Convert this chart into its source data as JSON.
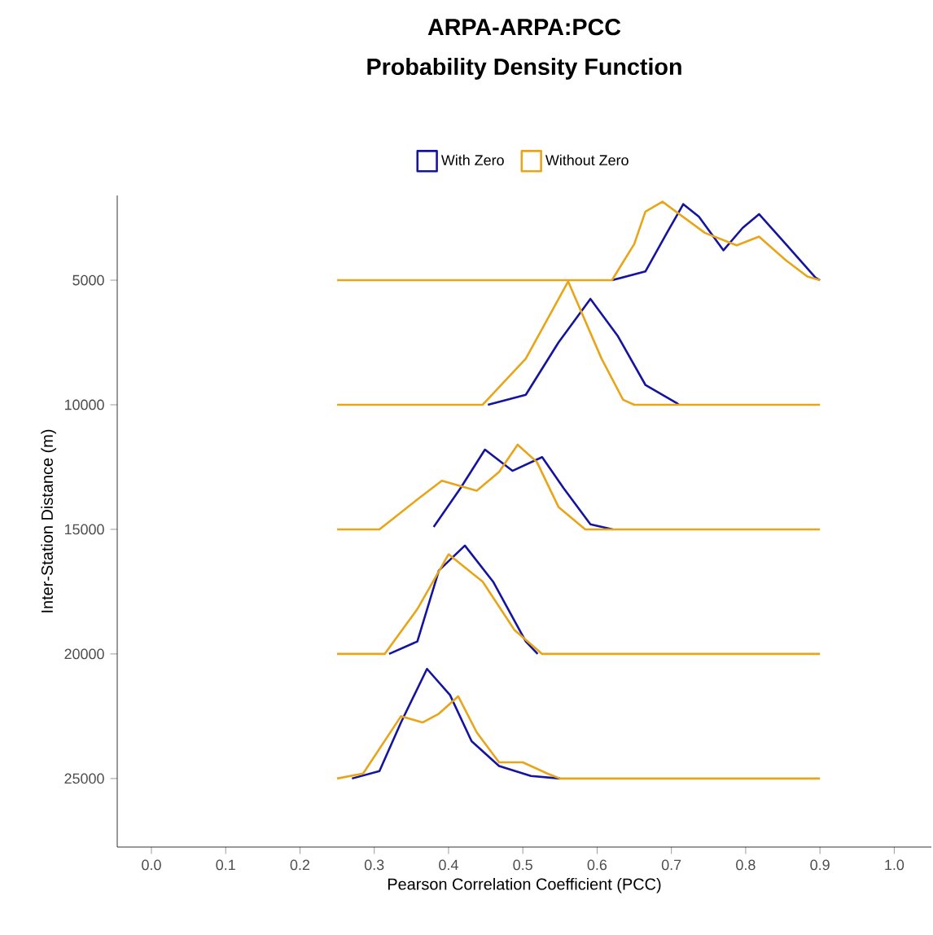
{
  "chart_data": {
    "type": "line",
    "title": "ARPA-ARPA:PCC",
    "subtitle": "Probability Density Function",
    "xlabel": "Pearson Correlation Coefficient (PCC)",
    "ylabel": "Inter-Station Distance (m)",
    "xlim": [
      -0.046,
      1.05
    ],
    "ylim": [
      27750,
      1600
    ],
    "xticks": [
      {
        "value": 0,
        "label": "0.0"
      },
      {
        "value": 0.1,
        "label": "0.1"
      },
      {
        "value": 0.2,
        "label": "0.2"
      },
      {
        "value": 0.3,
        "label": "0.3"
      },
      {
        "value": 0.4,
        "label": "0.4"
      },
      {
        "value": 0.5,
        "label": "0.5"
      },
      {
        "value": 0.6,
        "label": "0.6"
      },
      {
        "value": 0.7,
        "label": "0.7"
      },
      {
        "value": 0.8,
        "label": "0.8"
      },
      {
        "value": 0.9,
        "label": "0.9"
      },
      {
        "value": 1,
        "label": "1.0"
      }
    ],
    "yticks": [
      5000,
      10000,
      15000,
      20000,
      25000
    ],
    "grid": false,
    "legend": "top",
    "marker": "none",
    "line_style": "solid",
    "series": [
      {
        "name": "With Zero",
        "color": "#1414a0",
        "x": [
          0.62,
          0.665,
          0.694,
          0.716,
          0.737,
          0.77,
          0.796,
          0.818,
          0.854,
          0.894,
          0.9
        ],
        "values": [
          5000,
          4650,
          3100,
          1950,
          2450,
          3800,
          2900,
          2350,
          3550,
          4900,
          5000
        ]
      },
      {
        "color": "#1414a0",
        "x": [
          0.453,
          0.504,
          0.548,
          0.591,
          0.628,
          0.665,
          0.708,
          0.71
        ],
        "values": [
          10000,
          9600,
          7500,
          5750,
          7250,
          9200,
          9950,
          10000
        ]
      },
      {
        "color": "#1414a0",
        "x": [
          0.38,
          0.416,
          0.449,
          0.486,
          0.526,
          0.555,
          0.591,
          0.621
        ],
        "values": [
          14900,
          13350,
          11800,
          12650,
          12100,
          13350,
          14800,
          15000
        ]
      },
      {
        "color": "#1414a0",
        "x": [
          0.32,
          0.358,
          0.387,
          0.422,
          0.46,
          0.504,
          0.52
        ],
        "values": [
          20000,
          19500,
          16650,
          15650,
          17100,
          19500,
          20000
        ]
      },
      {
        "color": "#1414a0",
        "x": [
          0.27,
          0.307,
          0.336,
          0.371,
          0.402,
          0.431,
          0.468,
          0.511,
          0.55
        ],
        "values": [
          25000,
          24700,
          22750,
          20600,
          21650,
          23500,
          24500,
          24900,
          25000
        ]
      },
      {
        "name": "Without Zero",
        "color": "#e8a517",
        "x": [
          0.25,
          0.62,
          0.65,
          0.665,
          0.688,
          0.745,
          0.788,
          0.818,
          0.854,
          0.883,
          0.9
        ],
        "values": [
          5000,
          5000,
          3550,
          2250,
          1850,
          3100,
          3600,
          3250,
          4200,
          4850,
          5000
        ]
      },
      {
        "color": "#e8a517",
        "x": [
          0.25,
          0.446,
          0.504,
          0.561,
          0.606,
          0.635,
          0.65,
          0.9
        ],
        "values": [
          10000,
          10000,
          8150,
          5050,
          8150,
          9800,
          10000,
          10000
        ]
      },
      {
        "color": "#e8a517",
        "x": [
          0.25,
          0.307,
          0.358,
          0.391,
          0.438,
          0.468,
          0.493,
          0.519,
          0.548,
          0.584,
          0.9
        ],
        "values": [
          15000,
          15000,
          13800,
          13050,
          13450,
          12700,
          11600,
          12300,
          14100,
          15000,
          15000
        ]
      },
      {
        "color": "#e8a517",
        "x": [
          0.25,
          0.314,
          0.358,
          0.4,
          0.446,
          0.489,
          0.526,
          0.9
        ],
        "values": [
          20000,
          20000,
          18200,
          16000,
          17100,
          19050,
          20000,
          20000
        ]
      },
      {
        "color": "#e8a517",
        "x": [
          0.25,
          0.285,
          0.336,
          0.365,
          0.387,
          0.413,
          0.438,
          0.468,
          0.5,
          0.533,
          0.55,
          0.9
        ],
        "values": [
          25000,
          24800,
          22500,
          22750,
          22400,
          21700,
          23150,
          24350,
          24350,
          24800,
          25000,
          25000
        ]
      }
    ]
  }
}
